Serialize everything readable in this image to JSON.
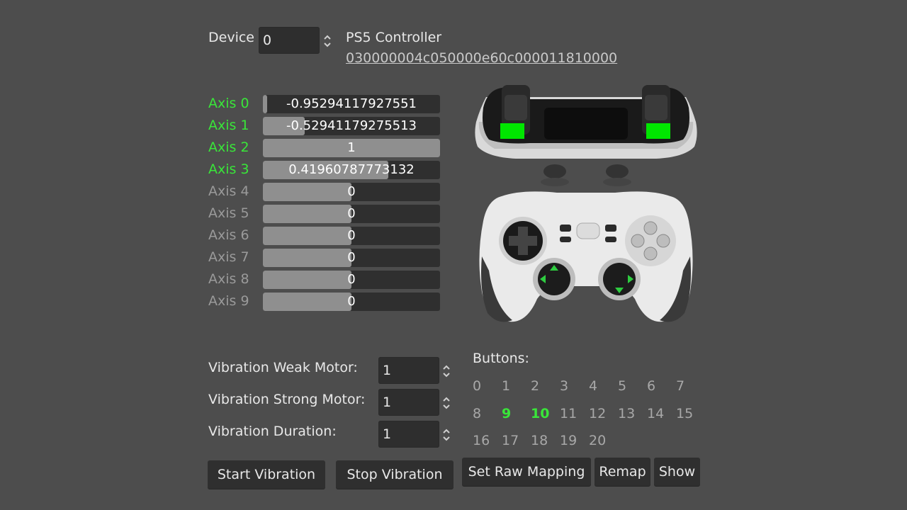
{
  "device": {
    "label": "Device",
    "value": "0",
    "name": "PS5 Controller",
    "guid": "030000004c050000e60c000011810000"
  },
  "axes": [
    {
      "label": "Axis 0",
      "value": -0.95294117927551,
      "text": "-0.95294117927551",
      "active": true
    },
    {
      "label": "Axis 1",
      "value": -0.52941179275513,
      "text": "-0.52941179275513",
      "active": true
    },
    {
      "label": "Axis 2",
      "value": 1,
      "text": "1",
      "active": true
    },
    {
      "label": "Axis 3",
      "value": 0.41960787773132,
      "text": "0.41960787773132",
      "active": true
    },
    {
      "label": "Axis 4",
      "value": 0,
      "text": "0",
      "active": false
    },
    {
      "label": "Axis 5",
      "value": 0,
      "text": "0",
      "active": false
    },
    {
      "label": "Axis 6",
      "value": 0,
      "text": "0",
      "active": false
    },
    {
      "label": "Axis 7",
      "value": 0,
      "text": "0",
      "active": false
    },
    {
      "label": "Axis 8",
      "value": 0,
      "text": "0",
      "active": false
    },
    {
      "label": "Axis 9",
      "value": 0,
      "text": "0",
      "active": false
    }
  ],
  "vibration": {
    "weak_label": "Vibration Weak Motor:",
    "weak_value": "1",
    "strong_label": "Vibration Strong Motor:",
    "strong_value": "1",
    "duration_label": "Vibration Duration:",
    "duration_value": "1"
  },
  "buttons": {
    "title": "Buttons:",
    "items": [
      {
        "label": "0",
        "pressed": false
      },
      {
        "label": "1",
        "pressed": false
      },
      {
        "label": "2",
        "pressed": false
      },
      {
        "label": "3",
        "pressed": false
      },
      {
        "label": "4",
        "pressed": false
      },
      {
        "label": "5",
        "pressed": false
      },
      {
        "label": "6",
        "pressed": false
      },
      {
        "label": "7",
        "pressed": false
      },
      {
        "label": "8",
        "pressed": false
      },
      {
        "label": "9",
        "pressed": true
      },
      {
        "label": "10",
        "pressed": true
      },
      {
        "label": "11",
        "pressed": false
      },
      {
        "label": "12",
        "pressed": false
      },
      {
        "label": "13",
        "pressed": false
      },
      {
        "label": "14",
        "pressed": false
      },
      {
        "label": "15",
        "pressed": false
      },
      {
        "label": "16",
        "pressed": false
      },
      {
        "label": "17",
        "pressed": false
      },
      {
        "label": "18",
        "pressed": false
      },
      {
        "label": "19",
        "pressed": false
      },
      {
        "label": "20",
        "pressed": false
      }
    ]
  },
  "actions": {
    "start_vibration": "Start Vibration",
    "stop_vibration": "Stop Vibration",
    "set_raw_mapping": "Set Raw Mapping",
    "remap": "Remap",
    "show": "Show"
  },
  "colors": {
    "background": "#4d4d4d",
    "active_green": "#39e639",
    "bar_fill": "#8f8f8f",
    "bar_bg": "#2f2f2f"
  }
}
